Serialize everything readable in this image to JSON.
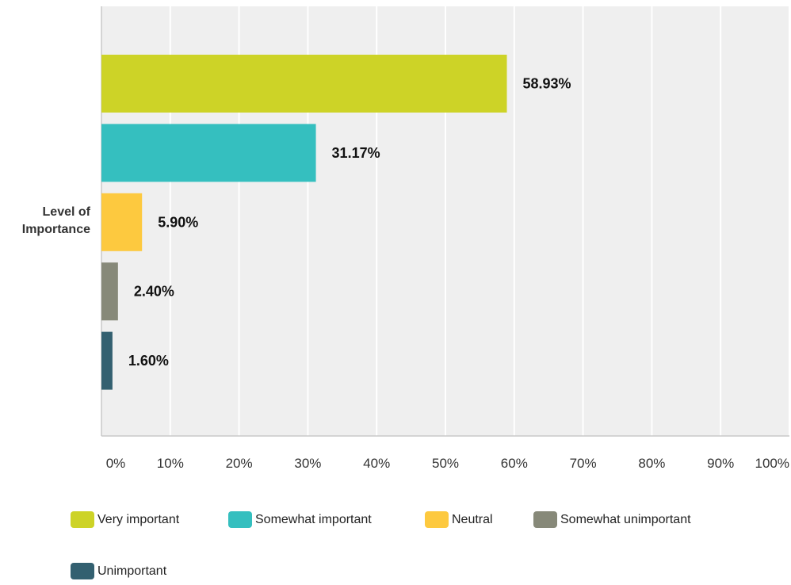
{
  "chart_data": {
    "type": "bar",
    "orientation": "horizontal",
    "category_label_lines": [
      "Level of",
      "Importance"
    ],
    "x_ticks": [
      "0%",
      "10%",
      "20%",
      "30%",
      "40%",
      "50%",
      "60%",
      "70%",
      "80%",
      "90%",
      "100%"
    ],
    "xlim": [
      0,
      100
    ],
    "grid": true,
    "legend_position": "bottom",
    "series": [
      {
        "name": "Very important",
        "value": 58.93,
        "label": "58.93%",
        "color": "#cdd327"
      },
      {
        "name": "Somewhat important",
        "value": 31.17,
        "label": "31.17%",
        "color": "#35bfbf"
      },
      {
        "name": "Neutral",
        "value": 5.9,
        "label": "5.90%",
        "color": "#fdc93f"
      },
      {
        "name": "Somewhat unimportant",
        "value": 2.4,
        "label": "2.40%",
        "color": "#878979"
      },
      {
        "name": "Unimportant",
        "value": 1.6,
        "label": "1.60%",
        "color": "#336070"
      }
    ]
  }
}
